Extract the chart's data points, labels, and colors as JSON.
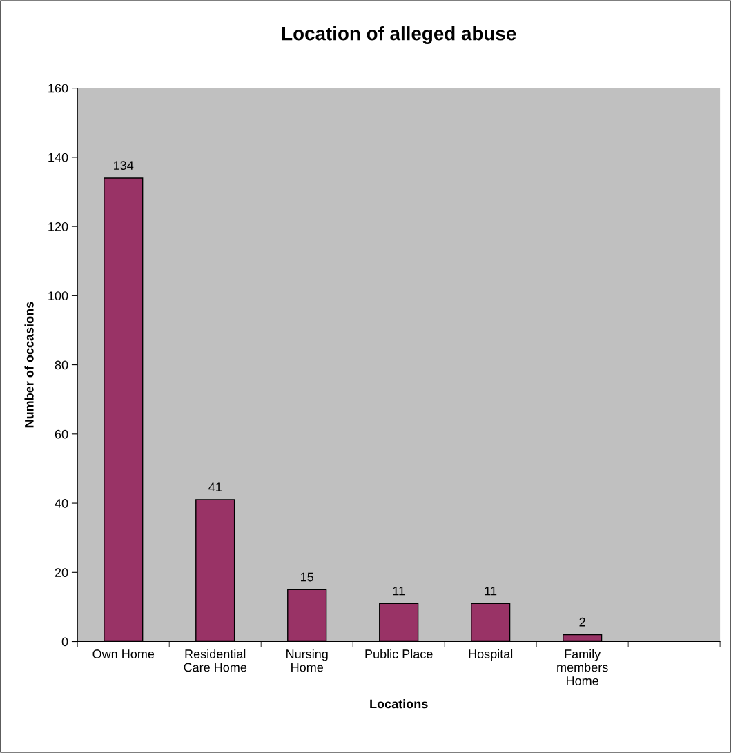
{
  "chart_data": {
    "type": "bar",
    "title": "Location of alleged abuse",
    "xlabel": "Locations",
    "ylabel": "Number of occasions",
    "categories": [
      "Own Home",
      "Residential\nCare Home",
      "Nursing\nHome",
      "Public Place",
      "Hospital",
      "Family\nmembers\nHome",
      null
    ],
    "values": [
      134,
      41,
      15,
      11,
      11,
      2,
      null
    ],
    "color": "#993366",
    "ylim": [
      0,
      160
    ],
    "yticks": [
      0,
      20,
      40,
      60,
      80,
      100,
      120,
      140,
      160
    ],
    "grid": false,
    "data_labels": true
  }
}
